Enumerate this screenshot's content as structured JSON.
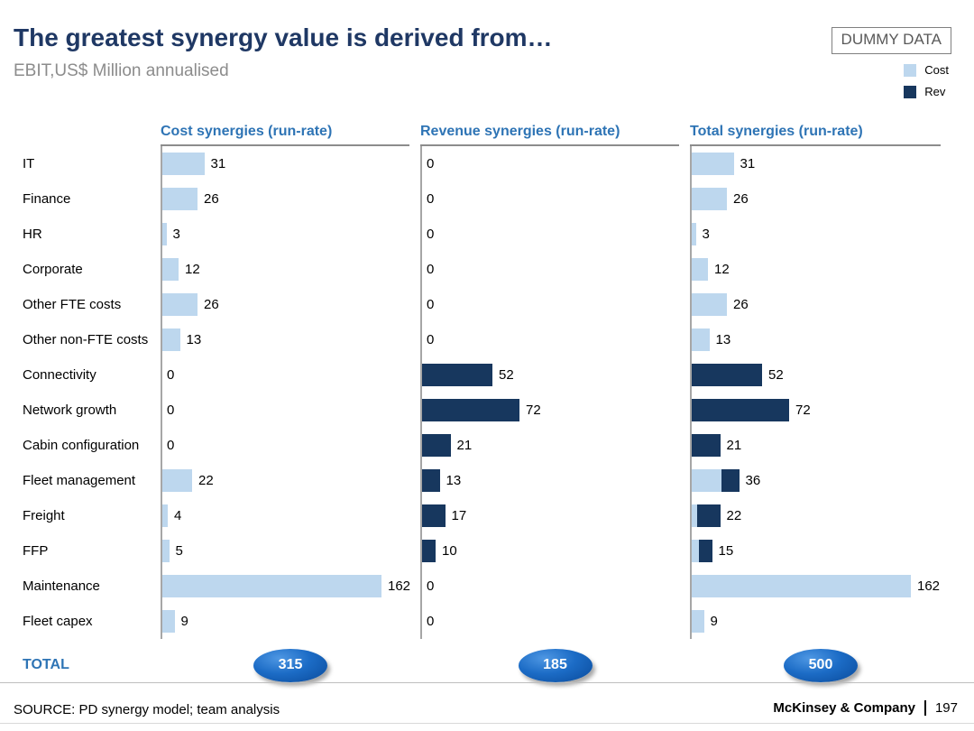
{
  "slide": {
    "title": "The greatest synergy value is derived from…",
    "subtitle": "EBIT,US$ Million annualised",
    "dummy_data_label": "DUMMY DATA",
    "legend": [
      {
        "label": "Cost",
        "color": "#BDD7EE"
      },
      {
        "label": "Rev",
        "color": "#17375E"
      }
    ],
    "total_label": "TOTAL",
    "source": "SOURCE: PD synergy model; team analysis",
    "footer_right": "McKinsey & Company",
    "page_number": "197"
  },
  "chart_data": {
    "type": "bar",
    "orientation": "horizontal",
    "title": "The greatest synergy value is derived from…",
    "ylabel": "",
    "xlabel": "EBIT, US$ Million annualised",
    "xlim": [
      0,
      170
    ],
    "grid": false,
    "legend_position": "top-right",
    "colors": {
      "cost": "#BDD7EE",
      "rev": "#17375E"
    },
    "categories": [
      "IT",
      "Finance",
      "HR",
      "Corporate",
      "Other FTE costs",
      "Other non-FTE costs",
      "Connectivity",
      "Network growth",
      "Cabin configuration",
      "Fleet management",
      "Freight",
      "FFP",
      "Maintenance",
      "Fleet capex"
    ],
    "columns": [
      {
        "title": "Cost synergies (run-rate)",
        "type": "cost",
        "values": [
          31,
          26,
          3,
          12,
          26,
          13,
          0,
          0,
          0,
          22,
          4,
          5,
          162,
          9
        ],
        "total": 315
      },
      {
        "title": "Revenue synergies (run-rate)",
        "type": "rev",
        "values": [
          0,
          0,
          0,
          0,
          0,
          0,
          52,
          72,
          21,
          13,
          17,
          10,
          0,
          0
        ],
        "total": 185
      },
      {
        "title": "Total synergies (run-rate)",
        "type": "stacked",
        "values": [
          31,
          26,
          3,
          12,
          26,
          13,
          52,
          72,
          21,
          36,
          22,
          15,
          162,
          9
        ],
        "total": 500
      }
    ]
  }
}
